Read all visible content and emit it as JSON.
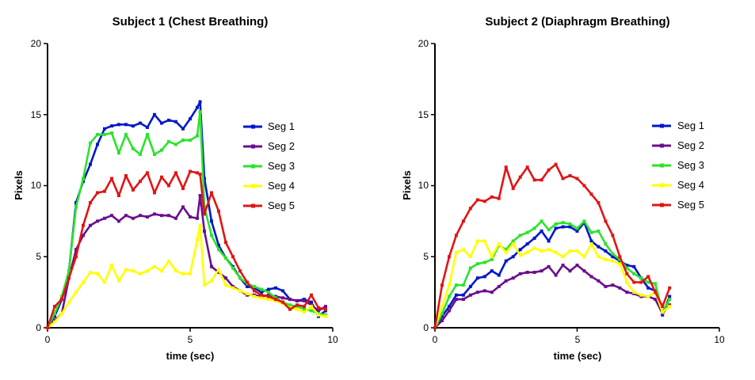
{
  "chart_data": [
    {
      "type": "line",
      "title": "Subject 1 (Chest Breathing)",
      "xlabel": "time (sec)",
      "ylabel": "Pixels",
      "xlim": [
        0,
        10
      ],
      "ylim": [
        0,
        20
      ],
      "xticks": [
        "0",
        "5",
        "10"
      ],
      "yticks": [
        "0",
        "5",
        "10",
        "15",
        "20"
      ],
      "grid": false,
      "legend": "right",
      "series": [
        {
          "name": "Seg 1",
          "color": "#0018c8",
          "x": [
            0,
            0.25,
            0.5,
            0.75,
            1,
            1.25,
            1.5,
            1.75,
            2,
            2.25,
            2.5,
            2.75,
            3,
            3.25,
            3.5,
            3.75,
            4,
            4.25,
            4.5,
            4.75,
            5,
            5.25,
            5.35,
            5.5,
            5.75,
            6,
            6.25,
            6.5,
            6.75,
            7,
            7.25,
            7.5,
            7.75,
            8,
            8.25,
            8.5,
            8.75,
            9,
            9.25,
            9.5,
            9.75
          ],
          "y": [
            0,
            0.8,
            2,
            4,
            8.8,
            10.3,
            11.5,
            12.9,
            14,
            14.2,
            14.3,
            14.3,
            14.2,
            14.4,
            14.1,
            15,
            14.4,
            14.6,
            14.5,
            14,
            14.7,
            15.5,
            15.9,
            10.5,
            7.5,
            5.8,
            4.9,
            4.3,
            3.5,
            2.9,
            2.8,
            2.5,
            2.7,
            2.8,
            2.6,
            2,
            1.9,
            2,
            1.8,
            0.8,
            1.2
          ]
        },
        {
          "name": "Seg 2",
          "color": "#6b0f8e",
          "x": [
            0,
            0.25,
            0.5,
            0.75,
            1,
            1.25,
            1.5,
            1.75,
            2,
            2.25,
            2.5,
            2.75,
            3,
            3.25,
            3.5,
            3.75,
            4,
            4.25,
            4.5,
            4.75,
            5,
            5.25,
            5.35,
            5.5,
            5.75,
            6,
            6.25,
            6.5,
            6.75,
            7,
            7.25,
            7.5,
            7.75,
            8,
            8.25,
            8.5,
            8.75,
            9,
            9.25,
            9.5,
            9.75
          ],
          "y": [
            0,
            0.5,
            1,
            3.5,
            5.5,
            6.5,
            7.2,
            7.5,
            7.7,
            7.9,
            7.5,
            7.9,
            7.7,
            7.9,
            7.8,
            8,
            7.9,
            7.9,
            7.7,
            8.5,
            7.8,
            7.7,
            9.3,
            6.8,
            4.3,
            3.9,
            3.5,
            2.9,
            2.6,
            2.3,
            2.3,
            2.2,
            2.3,
            2.2,
            2.1,
            2,
            1.9,
            1.9,
            1.6,
            1.2,
            1.5
          ]
        },
        {
          "name": "Seg 3",
          "color": "#2be32b",
          "x": [
            0,
            0.25,
            0.5,
            0.75,
            1,
            1.25,
            1.5,
            1.75,
            2,
            2.25,
            2.5,
            2.75,
            3,
            3.25,
            3.5,
            3.75,
            4,
            4.25,
            4.5,
            4.75,
            5,
            5.25,
            5.35,
            5.5,
            5.75,
            6,
            6.25,
            6.5,
            6.75,
            7,
            7.25,
            7.5,
            7.75,
            8,
            8.25,
            8.5,
            8.75,
            9,
            9.25,
            9.5,
            9.75
          ],
          "y": [
            0,
            1,
            2.2,
            4,
            8.5,
            10.5,
            13,
            13.6,
            13.6,
            13.7,
            12.3,
            13.6,
            12.6,
            12.2,
            13.6,
            12.2,
            12.5,
            13.1,
            12.9,
            13.2,
            13.2,
            13.5,
            15.2,
            8.5,
            6.5,
            5.5,
            4.9,
            4.2,
            3.5,
            3.1,
            2.9,
            2.7,
            2.5,
            2.1,
            1.8,
            1.6,
            1.5,
            1.3,
            1.2,
            1,
            0.9
          ]
        },
        {
          "name": "Seg 4",
          "color": "#ffff00",
          "x": [
            0,
            0.25,
            0.5,
            0.75,
            1,
            1.25,
            1.5,
            1.75,
            2,
            2.25,
            2.5,
            2.75,
            3,
            3.25,
            3.5,
            3.75,
            4,
            4.25,
            4.5,
            4.75,
            5,
            5.25,
            5.35,
            5.5,
            5.75,
            6,
            6.25,
            6.5,
            6.75,
            7,
            7.25,
            7.5,
            7.75,
            8,
            8.25,
            8.5,
            8.75,
            9,
            9.25,
            9.5,
            9.75
          ],
          "y": [
            0,
            0.4,
            1,
            1.8,
            2.5,
            3.2,
            3.9,
            3.8,
            3.2,
            4.4,
            3.3,
            4.1,
            4,
            3.8,
            4,
            4.3,
            4,
            4.7,
            4,
            3.8,
            3.8,
            6.2,
            7.2,
            3,
            3.3,
            4.1,
            3,
            2.8,
            2.6,
            2.4,
            2.2,
            2.1,
            2,
            1.9,
            1.7,
            1.4,
            1.3,
            1.1,
            1.5,
            0.9,
            0.8
          ]
        },
        {
          "name": "Seg 5",
          "color": "#e01515",
          "x": [
            0,
            0.25,
            0.5,
            0.75,
            1,
            1.25,
            1.5,
            1.75,
            2,
            2.25,
            2.5,
            2.75,
            3,
            3.25,
            3.5,
            3.75,
            4,
            4.25,
            4.5,
            4.75,
            5,
            5.25,
            5.35,
            5.5,
            5.75,
            6,
            6.25,
            6.5,
            6.75,
            7,
            7.25,
            7.5,
            7.75,
            8,
            8.25,
            8.5,
            8.75,
            9,
            9.25,
            9.5,
            9.75
          ],
          "y": [
            0,
            1.5,
            2,
            3.5,
            5,
            7.2,
            8.8,
            9.5,
            9.6,
            10.5,
            9.3,
            10.7,
            9.7,
            10.3,
            10.9,
            9.5,
            10.6,
            10,
            10.9,
            9.8,
            11,
            10.9,
            10.8,
            8,
            9.5,
            8.2,
            6,
            5,
            4,
            3.2,
            2.6,
            2.3,
            2.2,
            2,
            1.8,
            1.3,
            1.6,
            1.5,
            2.3,
            1.4,
            1.3
          ]
        }
      ]
    },
    {
      "type": "line",
      "title": "Subject 2 (Diaphragm  Breathing)",
      "xlabel": "time (sec)",
      "ylabel": "Pixels",
      "xlim": [
        0,
        10
      ],
      "ylim": [
        0,
        20
      ],
      "xticks": [
        "0",
        "5",
        "10"
      ],
      "yticks": [
        "0",
        "5",
        "10",
        "15",
        "20"
      ],
      "grid": false,
      "legend": "right",
      "series": [
        {
          "name": "Seg 1",
          "color": "#0018c8",
          "x": [
            0,
            0.25,
            0.5,
            0.75,
            1,
            1.25,
            1.5,
            1.75,
            2,
            2.25,
            2.5,
            2.75,
            3,
            3.25,
            3.5,
            3.75,
            4,
            4.25,
            4.5,
            4.75,
            5,
            5.25,
            5.5,
            5.75,
            6,
            6.25,
            6.5,
            6.75,
            7,
            7.25,
            7.5,
            7.75,
            8,
            8.25
          ],
          "y": [
            0,
            0.8,
            1.5,
            2.3,
            2.3,
            2.9,
            3.5,
            3.6,
            4,
            3.7,
            4.7,
            5,
            5.5,
            5.9,
            6.3,
            6.8,
            6.1,
            7,
            7.1,
            7.1,
            6.8,
            7.4,
            6.1,
            5.7,
            5.4,
            5,
            4.7,
            4.4,
            4.3,
            3.5,
            2.8,
            2.6,
            0.9,
            2.2
          ]
        },
        {
          "name": "Seg 2",
          "color": "#6b0f8e",
          "x": [
            0,
            0.25,
            0.5,
            0.75,
            1,
            1.25,
            1.5,
            1.75,
            2,
            2.25,
            2.5,
            2.75,
            3,
            3.25,
            3.5,
            3.75,
            4,
            4.25,
            4.5,
            4.75,
            5,
            5.25,
            5.5,
            5.75,
            6,
            6.25,
            6.5,
            6.75,
            7,
            7.25,
            7.5,
            7.75,
            8,
            8.25
          ],
          "y": [
            0,
            0.5,
            1.2,
            2,
            2,
            2.3,
            2.5,
            2.6,
            2.5,
            2.9,
            3.3,
            3.5,
            3.8,
            3.9,
            3.9,
            4,
            4.3,
            3.7,
            4.4,
            4,
            4.4,
            4,
            3.6,
            3.3,
            2.9,
            3,
            2.8,
            2.5,
            2.4,
            2.2,
            2.2,
            2,
            1,
            1.6
          ]
        },
        {
          "name": "Seg 3",
          "color": "#2be32b",
          "x": [
            0,
            0.25,
            0.5,
            0.75,
            1,
            1.25,
            1.5,
            1.75,
            2,
            2.25,
            2.5,
            2.75,
            3,
            3.25,
            3.5,
            3.75,
            4,
            4.25,
            4.5,
            4.75,
            5,
            5.25,
            5.5,
            5.75,
            6,
            6.25,
            6.5,
            6.75,
            7,
            7.25,
            7.5,
            7.75,
            8,
            8.25
          ],
          "y": [
            0,
            1,
            2.2,
            3,
            3,
            4.2,
            4.5,
            4.6,
            4.8,
            5.8,
            5.5,
            6.1,
            6.5,
            6.7,
            7,
            7.5,
            6.9,
            7.3,
            7.4,
            7.3,
            7,
            7.5,
            6.7,
            6.8,
            5.9,
            5.2,
            4.8,
            4.2,
            3.8,
            3.5,
            3.2,
            3.1,
            1.1,
            2
          ]
        },
        {
          "name": "Seg 4",
          "color": "#ffff00",
          "x": [
            0,
            0.25,
            0.5,
            0.75,
            1,
            1.25,
            1.5,
            1.75,
            2,
            2.25,
            2.5,
            2.75,
            3,
            3.25,
            3.5,
            3.75,
            4,
            4.25,
            4.5,
            4.75,
            5,
            5.25,
            5.5,
            5.75,
            6,
            6.25,
            6.5,
            6.75,
            7,
            7.25,
            7.5,
            7.75,
            8,
            8.25
          ],
          "y": [
            0,
            1.5,
            3,
            5.3,
            5.5,
            5,
            6.1,
            6.1,
            5,
            5.9,
            5.3,
            5.9,
            5.1,
            5.3,
            5.6,
            5.4,
            5.5,
            5.3,
            5,
            5.4,
            5.4,
            5,
            5.9,
            5,
            4.8,
            4.7,
            4.5,
            3.2,
            2.5,
            2.3,
            2.2,
            2.5,
            1.1,
            1.5
          ]
        },
        {
          "name": "Seg 5",
          "color": "#e01515",
          "x": [
            0,
            0.25,
            0.5,
            0.75,
            1,
            1.25,
            1.5,
            1.75,
            2,
            2.25,
            2.5,
            2.75,
            3,
            3.25,
            3.5,
            3.75,
            4,
            4.25,
            4.5,
            4.75,
            5,
            5.25,
            5.5,
            5.75,
            6,
            6.25,
            6.5,
            6.75,
            7,
            7.25,
            7.5,
            7.75,
            8,
            8.25
          ],
          "y": [
            0,
            3,
            5,
            6.5,
            7.5,
            8.4,
            9,
            8.9,
            9.2,
            9.1,
            11.3,
            9.8,
            10.6,
            11.3,
            10.4,
            10.4,
            11.1,
            11.5,
            10.5,
            10.7,
            10.5,
            10,
            9.4,
            8.8,
            7.5,
            6.5,
            5,
            3.8,
            3.2,
            3.2,
            3.6,
            2.5,
            1.5,
            2.8
          ]
        }
      ]
    }
  ]
}
